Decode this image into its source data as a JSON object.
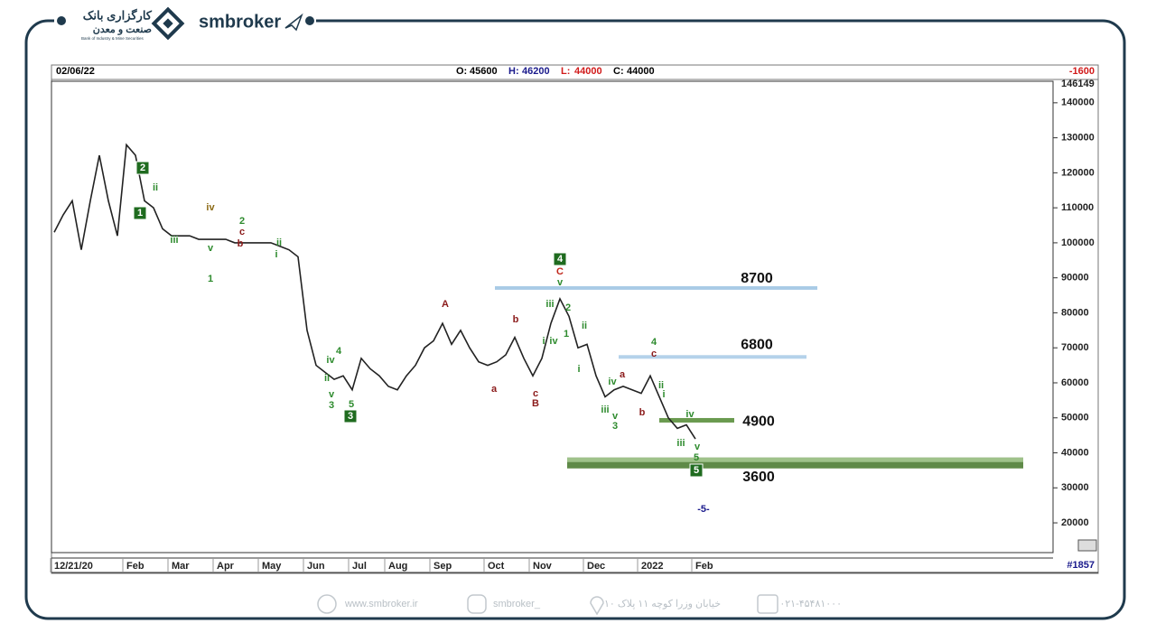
{
  "header": {
    "brand": "smbroker",
    "logo_fa_1": "کارگزاری بانک",
    "logo_fa_2": "صنعت و معدن",
    "logo_en": "Bank of Industry & Mine Securities"
  },
  "chart_data": {
    "type": "line",
    "date": "02/06/22",
    "ohlc": [
      {
        "label": "O:",
        "value": 45600,
        "color": "#000000"
      },
      {
        "label": "H:",
        "value": 46200,
        "color": "#1a1a8c"
      },
      {
        "label": "L:",
        "value": 44000,
        "color": "#d11a1a"
      },
      {
        "label": "C:",
        "value": 44000,
        "color": "#000000"
      }
    ],
    "change": -1600,
    "bar_count": "#1857",
    "categories": [
      "12/21/20",
      null,
      null,
      null,
      null,
      null,
      null,
      null,
      "Feb",
      null,
      null,
      null,
      null,
      "Mar",
      null,
      null,
      null,
      null,
      "Apr",
      null,
      null,
      null,
      null,
      "May",
      null,
      null,
      null,
      null,
      "Jun",
      null,
      null,
      null,
      null,
      "Jul",
      null,
      null,
      null,
      "Aug",
      null,
      null,
      null,
      null,
      "Sep",
      null,
      null,
      null,
      null,
      null,
      "Oct",
      null,
      null,
      null,
      null,
      "Nov",
      null,
      null,
      null,
      null,
      null,
      "Dec",
      null,
      null,
      null,
      null,
      null,
      "2022",
      null,
      null,
      null,
      null,
      null,
      "Feb"
    ],
    "values": [
      103000,
      108000,
      112000,
      98000,
      112000,
      125000,
      112000,
      102000,
      128000,
      125000,
      112000,
      110000,
      104000,
      102000,
      102000,
      102000,
      101000,
      101000,
      101000,
      101000,
      100000,
      100000,
      100000,
      100000,
      100000,
      99000,
      98000,
      96000,
      75000,
      65000,
      63000,
      61000,
      62000,
      58000,
      67000,
      64000,
      62000,
      59000,
      58000,
      62000,
      65000,
      70000,
      72000,
      77000,
      71000,
      75000,
      70000,
      66000,
      65000,
      66000,
      68000,
      73000,
      67000,
      62000,
      67000,
      77000,
      84000,
      79000,
      70000,
      71000,
      62000,
      56000,
      58000,
      59000,
      58000,
      57000,
      62000,
      56000,
      50000,
      47000,
      48000,
      44000
    ],
    "color": "#222222",
    "ylim": [
      11500,
      146149
    ],
    "yticks": [
      20000,
      30000,
      40000,
      50000,
      60000,
      70000,
      80000,
      90000,
      100000,
      110000,
      120000,
      130000,
      140000
    ],
    "levels": [
      {
        "label": "8700",
        "value": 87100,
        "color": "#a9cbe6"
      },
      {
        "label": "6800",
        "value": 67400,
        "color": "#b4d2ea"
      },
      {
        "label": "4900",
        "value": 49300,
        "color": "#6a9a4f"
      },
      {
        "label": "3600",
        "value": 37100,
        "color": "#5f8a48"
      }
    ],
    "annotations": [
      {
        "text": "2",
        "color": "#1f6b1f",
        "boxed": true
      },
      {
        "text": "1",
        "color": "#1f6b1f",
        "boxed": true
      },
      {
        "text": "3",
        "color": "#1f6b1f",
        "boxed": true
      },
      {
        "text": "4",
        "color": "#1f6b1f",
        "boxed": true
      },
      {
        "text": "5",
        "color": "#1f6b1f",
        "boxed": true
      },
      {
        "text": "ii",
        "color": "#2e8b2e",
        "boxed": false
      },
      {
        "text": "iii",
        "color": "#2e8b2e",
        "boxed": false
      },
      {
        "text": "v",
        "color": "#2e8b2e",
        "boxed": false
      },
      {
        "text": "1",
        "color": "#2e8b2e",
        "boxed": false
      },
      {
        "text": "2",
        "color": "#2e8b2e",
        "boxed": false
      },
      {
        "text": "ii",
        "color": "#2e8b2e",
        "boxed": false
      },
      {
        "text": "i",
        "color": "#2e8b2e",
        "boxed": false
      },
      {
        "text": "4",
        "color": "#2e8b2e",
        "boxed": false
      },
      {
        "text": "iv",
        "color": "#2e8b2e",
        "boxed": false
      },
      {
        "text": "ii",
        "color": "#2e8b2e",
        "boxed": false
      },
      {
        "text": "v",
        "color": "#2e8b2e",
        "boxed": false
      },
      {
        "text": "3",
        "color": "#2e8b2e",
        "boxed": false
      },
      {
        "text": "5",
        "color": "#2e8b2e",
        "boxed": false
      },
      {
        "text": "v",
        "color": "#2e8b2e",
        "boxed": false
      },
      {
        "text": "iii",
        "color": "#2e8b2e",
        "boxed": false
      },
      {
        "text": "2",
        "color": "#2e8b2e",
        "boxed": false
      },
      {
        "text": "i",
        "color": "#2e8b2e",
        "boxed": false
      },
      {
        "text": "iv",
        "color": "#2e8b2e",
        "boxed": false
      },
      {
        "text": "1",
        "color": "#2e8b2e",
        "boxed": false
      },
      {
        "text": "ii",
        "color": "#2e8b2e",
        "boxed": false
      },
      {
        "text": "i",
        "color": "#2e8b2e",
        "boxed": false
      },
      {
        "text": "iv",
        "color": "#2e8b2e",
        "boxed": false
      },
      {
        "text": "iii",
        "color": "#2e8b2e",
        "boxed": false
      },
      {
        "text": "v",
        "color": "#2e8b2e",
        "boxed": false
      },
      {
        "text": "3",
        "color": "#2e8b2e",
        "boxed": false
      },
      {
        "text": "4",
        "color": "#2e8b2e",
        "boxed": false
      },
      {
        "text": "ii",
        "color": "#2e8b2e",
        "boxed": false
      },
      {
        "text": "i",
        "color": "#2e8b2e",
        "boxed": false
      },
      {
        "text": "iv",
        "color": "#2e8b2e",
        "boxed": false
      },
      {
        "text": "iii",
        "color": "#2e8b2e",
        "boxed": false
      },
      {
        "text": "v",
        "color": "#2e8b2e",
        "boxed": false
      },
      {
        "text": "5",
        "color": "#2e8b2e",
        "boxed": false
      },
      {
        "text": "c",
        "color": "#8b1a1a",
        "boxed": false
      },
      {
        "text": "b",
        "color": "#8b1a1a",
        "boxed": false
      },
      {
        "text": "A",
        "color": "#8b1a1a",
        "boxed": false
      },
      {
        "text": "b",
        "color": "#8b1a1a",
        "boxed": false
      },
      {
        "text": "a",
        "color": "#8b1a1a",
        "boxed": false
      },
      {
        "text": "c",
        "color": "#8b1a1a",
        "boxed": false
      },
      {
        "text": "B",
        "color": "#8b1a1a",
        "boxed": false
      },
      {
        "text": "C",
        "color": "#c0261a",
        "boxed": false
      },
      {
        "text": "a",
        "color": "#8b1a1a",
        "boxed": false
      },
      {
        "text": "b",
        "color": "#8b1a1a",
        "boxed": false
      },
      {
        "text": "c",
        "color": "#8b1a1a",
        "boxed": false
      },
      {
        "text": "iv",
        "color": "#8b6914",
        "boxed": false
      },
      {
        "text": "-5-",
        "color": "#1a1a8c",
        "boxed": false
      }
    ]
  },
  "footer": {
    "website": "www.smbroker.ir",
    "instagram": "smbroker_",
    "address": "خیابان وزرا کوچه ۱۱ پلاک ۱۰",
    "phone": "۰۲۱-۴۵۴۸۱۰۰۰"
  }
}
